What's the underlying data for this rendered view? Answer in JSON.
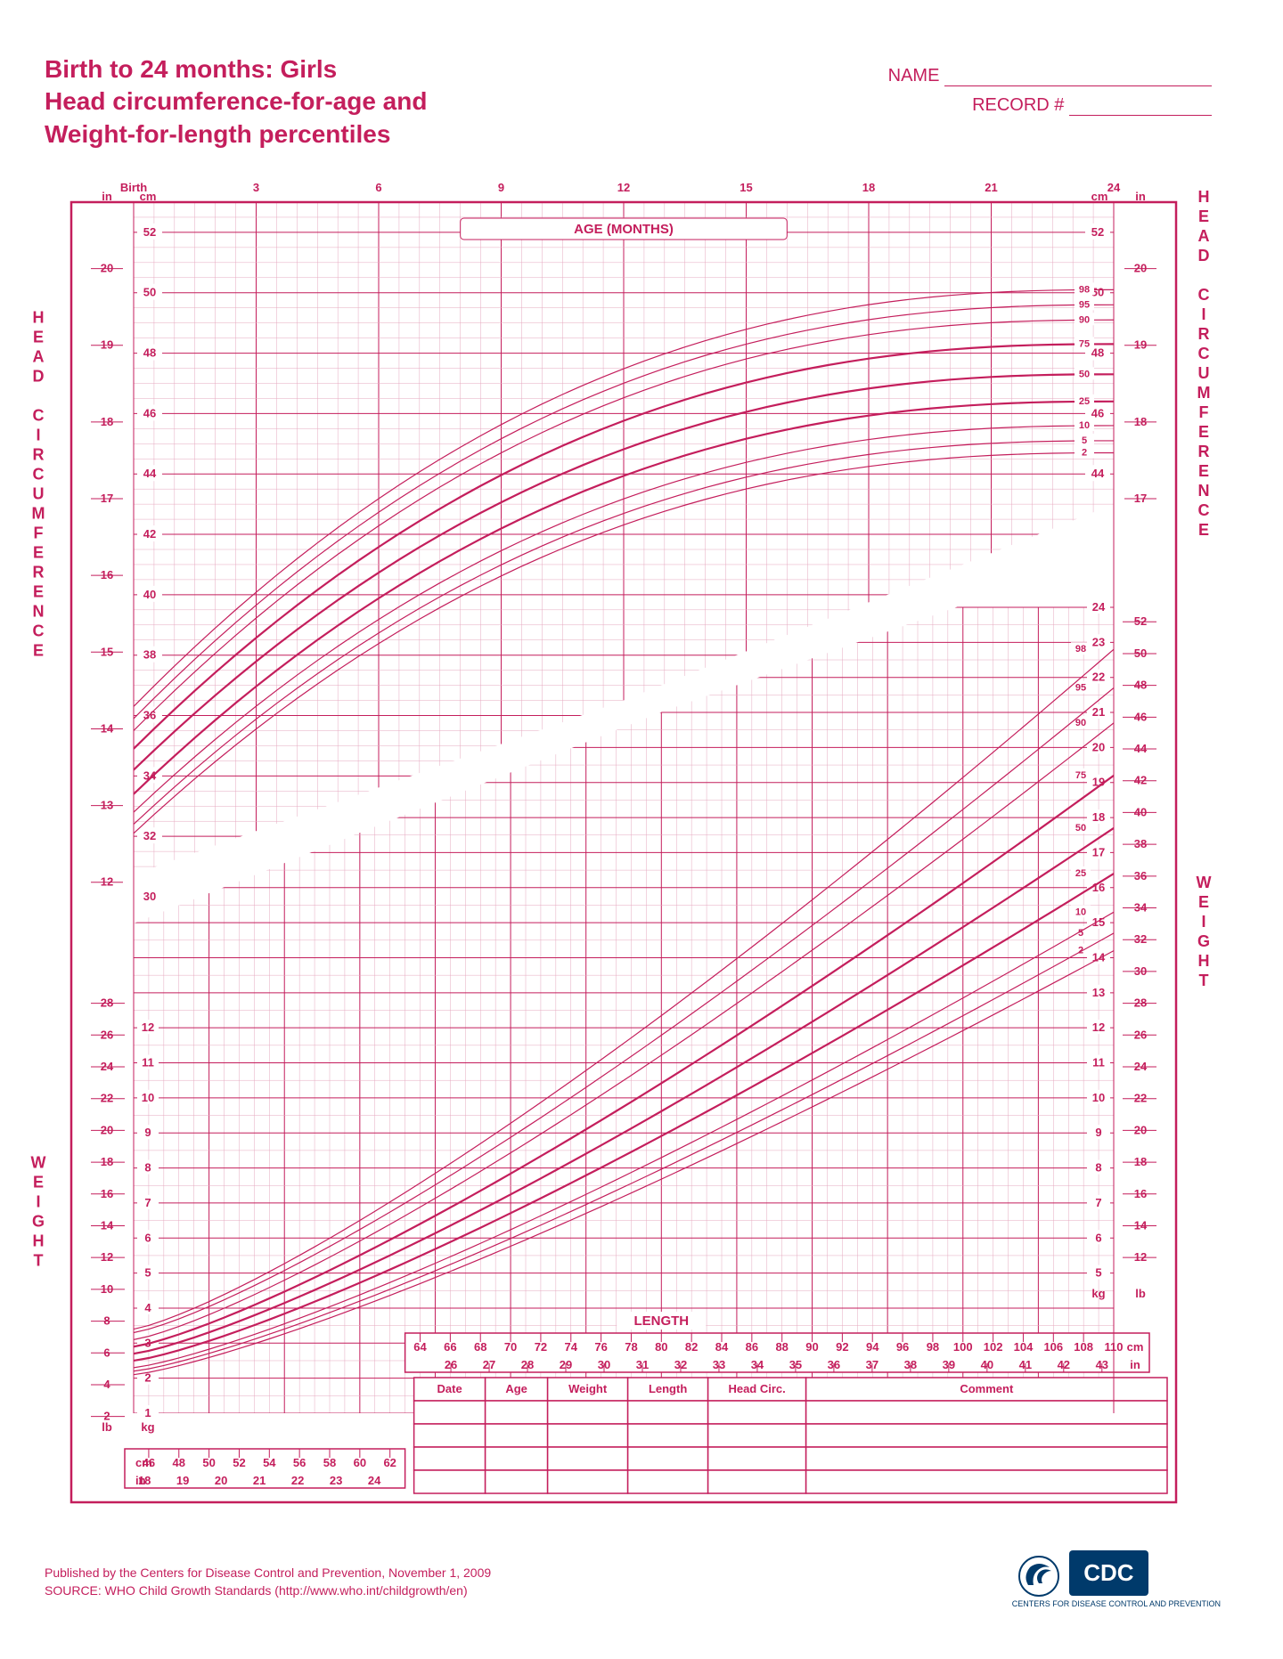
{
  "title": {
    "line1": "Birth to 24 months: Girls",
    "line2": "Head circumference-for-age and",
    "line3": "Weight-for-length percentiles"
  },
  "header_fields": {
    "name_label": "NAME",
    "record_label": "RECORD #"
  },
  "colors": {
    "primary": "#c41e5c",
    "grid_minor": "#e6a8bf",
    "background": "#ffffff",
    "cdc_blue": "#003a6b"
  },
  "age_axis": {
    "label": "AGE (MONTHS)",
    "ticks": [
      "Birth",
      "3",
      "6",
      "9",
      "12",
      "15",
      "18",
      "21",
      "24"
    ],
    "min": 0,
    "max": 24
  },
  "head_circ": {
    "vertical_label": "HEAD CIRCUMFERENCE",
    "unit_cm_label": "cm",
    "unit_in_label": "in",
    "cm_ticks": [
      30,
      32,
      34,
      36,
      38,
      40,
      42,
      44,
      46,
      48,
      50,
      52
    ],
    "in_ticks": [
      12,
      13,
      14,
      15,
      16,
      17,
      18,
      19,
      20
    ],
    "cm_min": 30,
    "cm_max": 53,
    "percentiles": [
      {
        "p": "2",
        "thick": false,
        "start": 32.1,
        "end": 44.7
      },
      {
        "p": "5",
        "thick": false,
        "start": 32.4,
        "end": 45.1
      },
      {
        "p": "10",
        "thick": false,
        "start": 32.8,
        "end": 45.6
      },
      {
        "p": "25",
        "thick": true,
        "start": 33.4,
        "end": 46.4
      },
      {
        "p": "50",
        "thick": true,
        "start": 34.2,
        "end": 47.3
      },
      {
        "p": "75",
        "thick": true,
        "start": 34.9,
        "end": 48.3
      },
      {
        "p": "90",
        "thick": false,
        "start": 35.5,
        "end": 49.1
      },
      {
        "p": "95",
        "thick": false,
        "start": 35.9,
        "end": 49.6
      },
      {
        "p": "98",
        "thick": false,
        "start": 36.3,
        "end": 50.1
      }
    ]
  },
  "weight_length": {
    "weight_label": "WEIGHT",
    "length_label": "LENGTH",
    "kg_label": "kg",
    "lb_label": "lb",
    "cm_label": "cm",
    "in_label": "in",
    "kg_ticks_left": [
      1,
      2,
      3,
      4,
      5,
      6,
      7,
      8,
      9,
      10,
      11,
      12
    ],
    "lb_ticks_left": [
      2,
      4,
      6,
      8,
      10,
      12,
      14,
      16,
      18,
      20,
      22,
      24,
      26,
      28
    ],
    "kg_ticks_right": [
      5,
      6,
      7,
      8,
      9,
      10,
      11,
      12,
      13,
      14,
      15,
      16,
      17,
      18,
      19,
      20,
      21,
      22,
      23,
      24
    ],
    "lb_ticks_right": [
      12,
      14,
      16,
      18,
      20,
      22,
      24,
      26,
      28,
      30,
      32,
      34,
      36,
      38,
      40,
      42,
      44,
      46,
      48,
      50,
      52
    ],
    "kg_min": 1,
    "kg_max": 24,
    "length_cm_min": 45,
    "length_cm_max": 110,
    "length_cm_ticks_lower": [
      46,
      48,
      50,
      52,
      54,
      56,
      58,
      60,
      62
    ],
    "length_in_ticks_lower": [
      18,
      19,
      20,
      21,
      22,
      23,
      24
    ],
    "length_cm_ticks_upper": [
      64,
      66,
      68,
      70,
      72,
      74,
      76,
      78,
      80,
      82,
      84,
      86,
      88,
      90,
      92,
      94,
      96,
      98,
      100,
      102,
      104,
      106,
      108,
      110
    ],
    "length_in_ticks_upper": [
      26,
      27,
      28,
      29,
      30,
      31,
      32,
      33,
      34,
      35,
      36,
      37,
      38,
      39,
      40,
      41,
      42,
      43
    ],
    "percentiles": [
      {
        "p": "2",
        "thick": false,
        "start": 2.1,
        "end": 14.2
      },
      {
        "p": "5",
        "thick": false,
        "start": 2.2,
        "end": 14.7
      },
      {
        "p": "10",
        "thick": false,
        "start": 2.3,
        "end": 15.3
      },
      {
        "p": "25",
        "thick": true,
        "start": 2.5,
        "end": 16.4
      },
      {
        "p": "50",
        "thick": true,
        "start": 2.7,
        "end": 17.7
      },
      {
        "p": "75",
        "thick": true,
        "start": 2.9,
        "end": 19.2
      },
      {
        "p": "90",
        "thick": false,
        "start": 3.1,
        "end": 20.7
      },
      {
        "p": "95",
        "thick": false,
        "start": 3.3,
        "end": 21.7
      },
      {
        "p": "98",
        "thick": false,
        "start": 3.4,
        "end": 22.8
      }
    ]
  },
  "data_table": {
    "columns": [
      "Date",
      "Age",
      "Weight",
      "Length",
      "Head Circ.",
      "Comment"
    ],
    "rows": 4
  },
  "footer": {
    "line1": "Published by the Centers for Disease Control and Prevention, November 1, 2009",
    "line2": "SOURCE:  WHO Child Growth Standards (http://www.who.int/childgrowth/en)"
  },
  "logo": {
    "text": "CDC",
    "tagline": "CENTERS FOR DISEASE CONTROL AND PREVENTION"
  }
}
